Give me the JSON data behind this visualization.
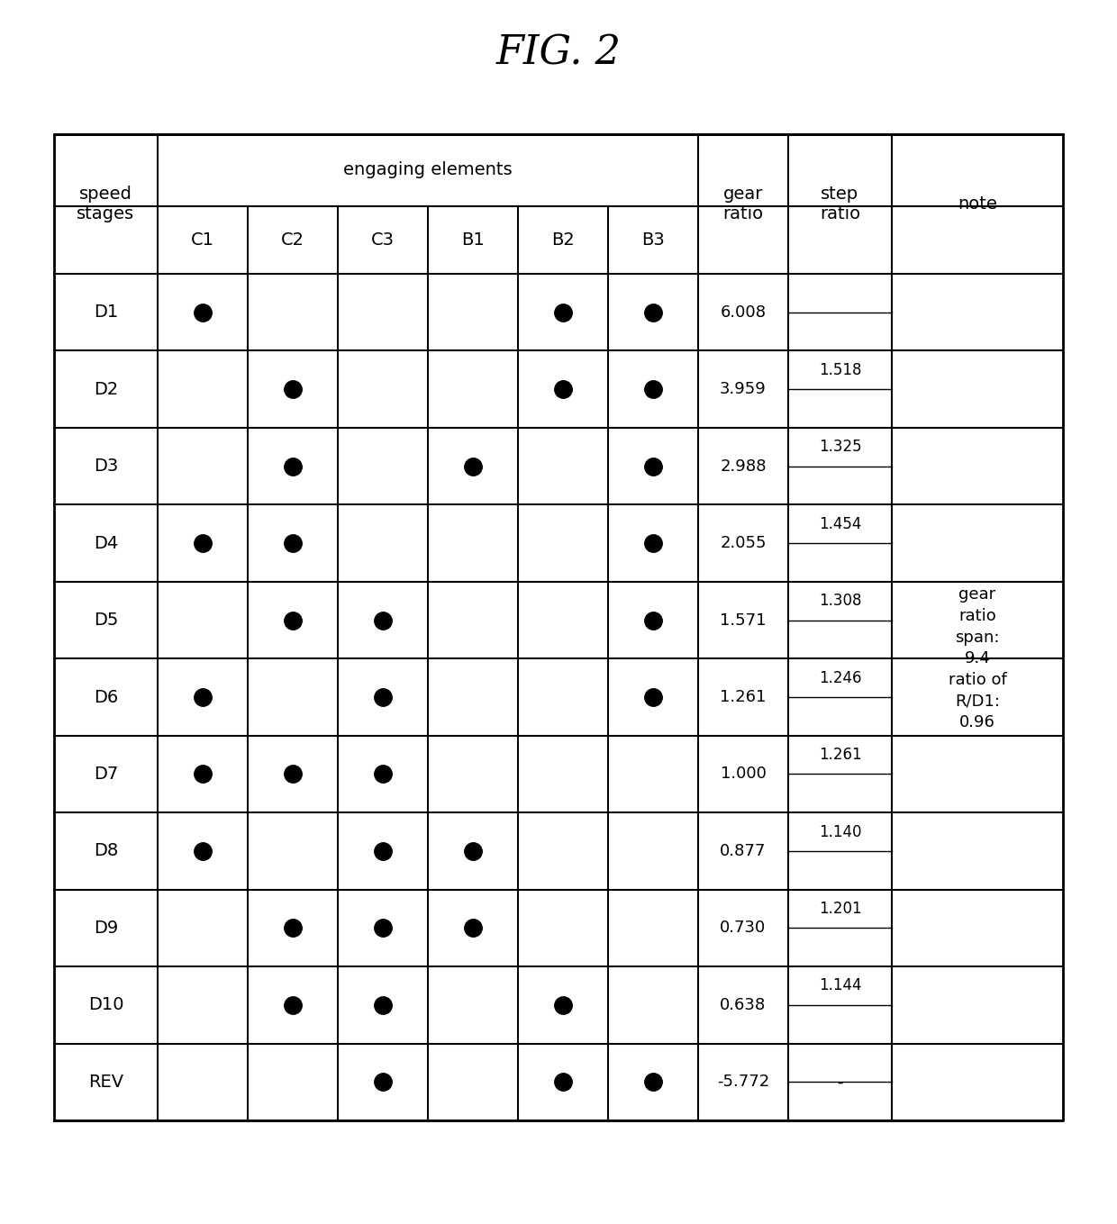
{
  "title": "FIG. 2",
  "title_fontsize": 32,
  "rows": [
    "D1",
    "D2",
    "D3",
    "D4",
    "D5",
    "D6",
    "D7",
    "D8",
    "D9",
    "D10",
    "REV"
  ],
  "engaging_cols": [
    "C1",
    "C2",
    "C3",
    "B1",
    "B2",
    "B3"
  ],
  "engaging_elements": [
    [
      1,
      0,
      0,
      0,
      1,
      1
    ],
    [
      0,
      1,
      0,
      0,
      1,
      1
    ],
    [
      0,
      1,
      0,
      1,
      0,
      1
    ],
    [
      1,
      1,
      0,
      0,
      0,
      1
    ],
    [
      0,
      1,
      1,
      0,
      0,
      1
    ],
    [
      1,
      0,
      1,
      0,
      0,
      1
    ],
    [
      1,
      1,
      1,
      0,
      0,
      0
    ],
    [
      1,
      0,
      1,
      1,
      0,
      0
    ],
    [
      0,
      1,
      1,
      1,
      0,
      0
    ],
    [
      0,
      1,
      1,
      0,
      1,
      0
    ],
    [
      0,
      0,
      1,
      0,
      1,
      1
    ]
  ],
  "gear_ratios": [
    "6.008",
    "3.959",
    "2.988",
    "2.055",
    "1.571",
    "1.261",
    "1.000",
    "0.877",
    "0.730",
    "0.638",
    "-5.772"
  ],
  "step_ratios": [
    "1.518",
    "1.325",
    "1.454",
    "1.308",
    "1.246",
    "1.261",
    "1.140",
    "1.201",
    "1.144",
    "-"
  ],
  "note_text": "gear\nratio\nspan:\n9.4\nratio of\nR/D1:\n0.96",
  "header_engaging": "engaging elements",
  "header_speed": "speed\nstages",
  "header_gear": "gear\nratio",
  "header_step": "step\nratio",
  "header_note": "note",
  "bg_color": "#ffffff",
  "text_color": "#000000",
  "line_color": "#000000",
  "dot_color": "#000000"
}
